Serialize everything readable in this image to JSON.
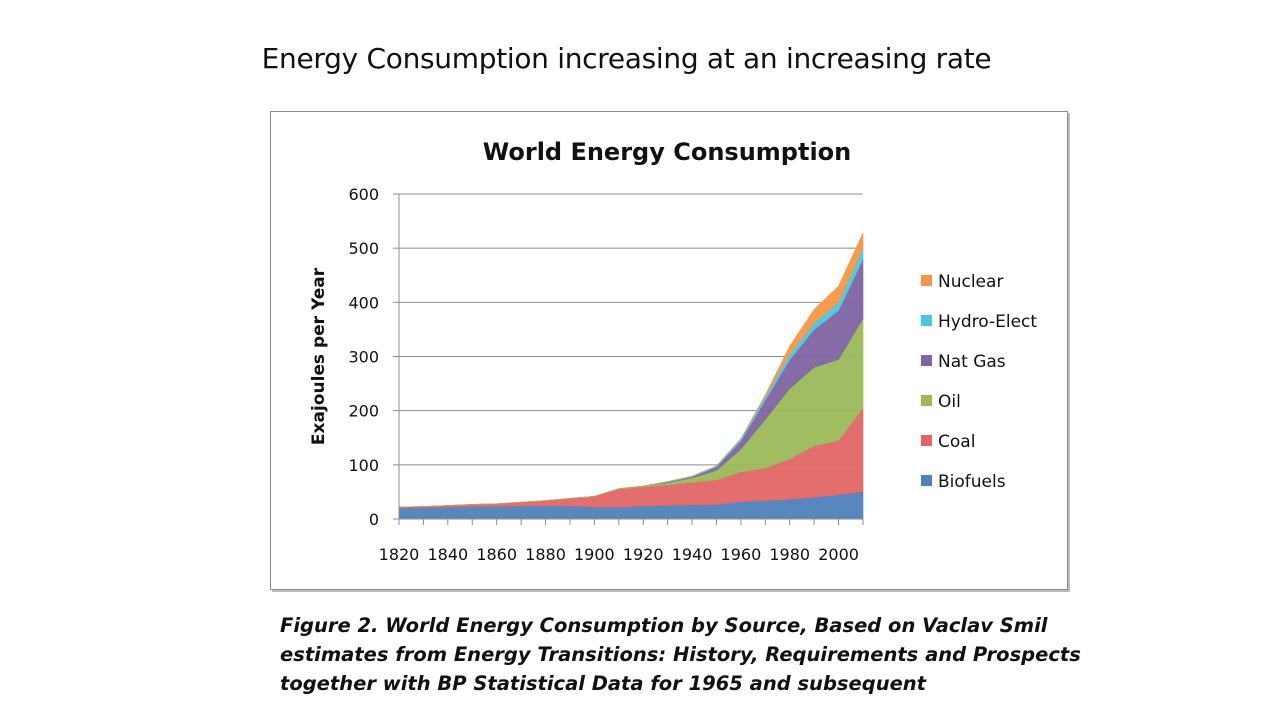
{
  "slide": {
    "title": "Energy Consumption increasing at an increasing rate",
    "caption_lines": [
      "Figure 2. World Energy Consumption by Source, Based on Vaclav Smil",
      "estimates from Energy Transitions: History, Requirements and Prospects",
      "together with BP Statistical Data for 1965 and subsequent"
    ]
  },
  "chart_data": {
    "type": "area",
    "stacked": true,
    "title": "World Energy Consumption",
    "xlabel": "",
    "ylabel": "Exajoules per Year",
    "ylim": [
      0,
      600
    ],
    "yticks": [
      0,
      100,
      200,
      300,
      400,
      500,
      600
    ],
    "xticks": [
      1820,
      1840,
      1860,
      1880,
      1900,
      1920,
      1940,
      1960,
      1980,
      2000
    ],
    "xlim": [
      1820,
      2010
    ],
    "grid": "horizontal",
    "legend": "right",
    "x": [
      1820,
      1830,
      1840,
      1850,
      1860,
      1870,
      1880,
      1890,
      1900,
      1910,
      1920,
      1930,
      1940,
      1950,
      1960,
      1970,
      1980,
      1990,
      2000,
      2010
    ],
    "series": [
      {
        "name": "Biofuels",
        "color": "#4f81bd",
        "values": [
          20,
          21,
          22,
          23,
          23,
          24,
          24,
          24,
          22,
          22,
          24,
          25,
          26,
          27,
          32,
          34,
          36,
          40,
          45,
          50
        ]
      },
      {
        "name": "Coal",
        "color": "#e06666",
        "values": [
          2,
          2,
          3,
          4,
          5,
          7,
          10,
          14,
          20,
          33,
          35,
          38,
          42,
          45,
          55,
          60,
          75,
          95,
          100,
          155
        ]
      },
      {
        "name": "Oil",
        "color": "#9bbb59",
        "values": [
          0,
          0,
          0,
          0,
          0,
          0,
          0,
          0,
          0,
          1,
          2,
          4,
          8,
          18,
          42,
          90,
          130,
          145,
          150,
          165
        ]
      },
      {
        "name": "Nat Gas",
        "color": "#8064a2",
        "values": [
          0,
          0,
          0,
          0,
          0,
          0,
          0,
          0,
          0,
          0,
          0,
          1,
          2,
          6,
          15,
          35,
          53,
          70,
          90,
          110
        ]
      },
      {
        "name": "Hydro-Elect",
        "color": "#4bc6dd",
        "values": [
          0,
          0,
          0,
          0,
          0,
          0,
          0,
          0,
          0,
          0,
          0,
          1,
          1,
          2,
          4,
          7,
          10,
          12,
          15,
          20
        ]
      },
      {
        "name": "Nuclear",
        "color": "#f79646",
        "values": [
          0,
          0,
          0,
          0,
          0,
          0,
          0,
          0,
          0,
          0,
          0,
          0,
          0,
          0,
          0,
          3,
          15,
          25,
          30,
          28
        ]
      }
    ]
  }
}
